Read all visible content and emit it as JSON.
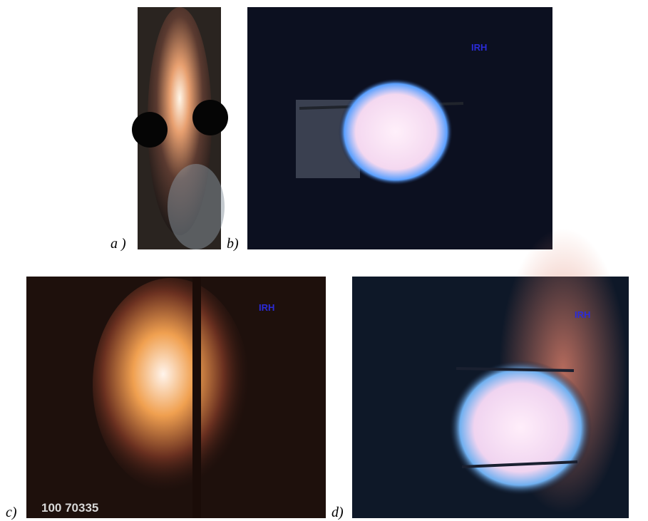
{
  "panels": [
    {
      "label": "a )"
    },
    {
      "label": "b)",
      "logo": "IRH"
    },
    {
      "label": "c)",
      "logo": "IRH",
      "caption": "100 70335"
    },
    {
      "label": "d)",
      "logo": "IRH"
    }
  ]
}
